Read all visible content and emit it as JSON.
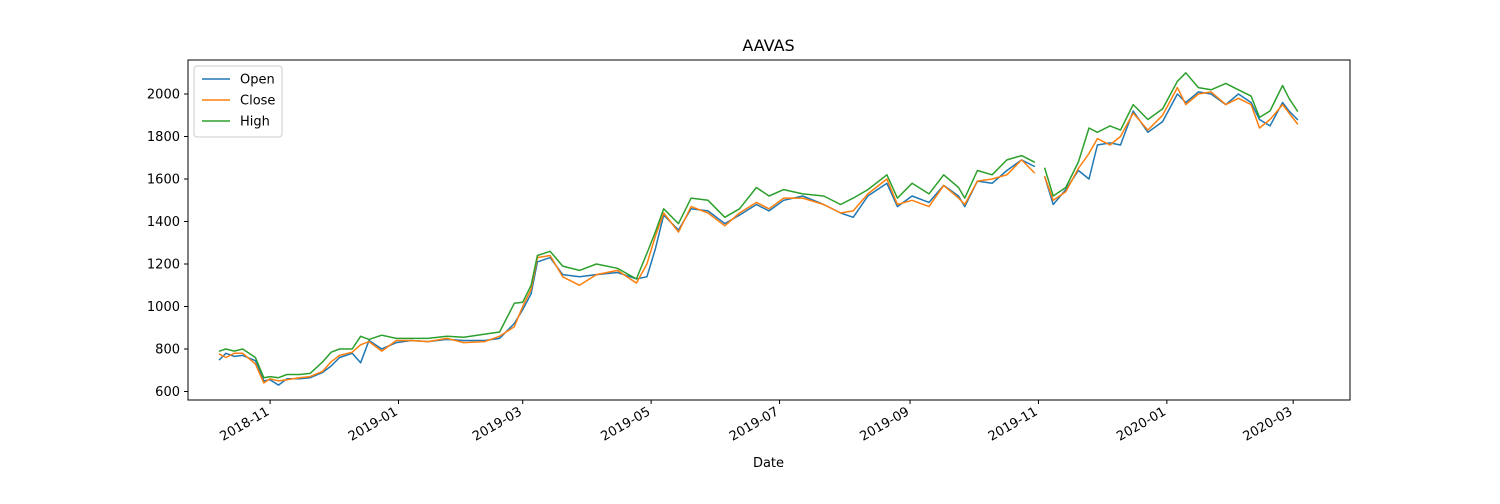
{
  "chart_data": {
    "type": "line",
    "title": "AAVAS",
    "xlabel": "Date",
    "ylabel": "",
    "ylim": [
      560,
      2160
    ],
    "yticks": [
      600,
      800,
      1000,
      1200,
      1400,
      1600,
      1800,
      2000
    ],
    "xlim": [
      "2018-09-23",
      "2020-03-28"
    ],
    "xticks": [
      "2018-11",
      "2019-01",
      "2019-03",
      "2019-05",
      "2019-07",
      "2019-09",
      "2019-11",
      "2020-01",
      "2020-03"
    ],
    "legend": {
      "placement": "upper-left",
      "entries": [
        "Open",
        "Close",
        "High"
      ]
    },
    "grid": false,
    "colors": {
      "Open": "#1f77b4",
      "Close": "#ff7f0e",
      "High": "#2ca02c"
    },
    "series": [
      {
        "name": "Open",
        "points": [
          [
            "2018-10-08",
            750
          ],
          [
            "2018-10-11",
            780
          ],
          [
            "2018-10-15",
            765
          ],
          [
            "2018-10-19",
            770
          ],
          [
            "2018-10-25",
            745
          ],
          [
            "2018-10-29",
            650
          ],
          [
            "2018-11-01",
            655
          ],
          [
            "2018-11-05",
            630
          ],
          [
            "2018-11-09",
            660
          ],
          [
            "2018-11-15",
            660
          ],
          [
            "2018-11-20",
            665
          ],
          [
            "2018-11-26",
            690
          ],
          [
            "2018-11-30",
            720
          ],
          [
            "2018-12-04",
            760
          ],
          [
            "2018-12-10",
            780
          ],
          [
            "2018-12-14",
            735
          ],
          [
            "2018-12-18",
            840
          ],
          [
            "2018-12-24",
            800
          ],
          [
            "2018-12-31",
            830
          ],
          [
            "2019-01-07",
            840
          ],
          [
            "2019-01-15",
            835
          ],
          [
            "2019-01-24",
            845
          ],
          [
            "2019-02-01",
            840
          ],
          [
            "2019-02-11",
            840
          ],
          [
            "2019-02-18",
            850
          ],
          [
            "2019-02-25",
            920
          ],
          [
            "2019-03-01",
            985
          ],
          [
            "2019-03-05",
            1060
          ],
          [
            "2019-03-08",
            1210
          ],
          [
            "2019-03-14",
            1230
          ],
          [
            "2019-03-20",
            1150
          ],
          [
            "2019-03-28",
            1140
          ],
          [
            "2019-04-05",
            1150
          ],
          [
            "2019-04-15",
            1160
          ],
          [
            "2019-04-24",
            1130
          ],
          [
            "2019-04-29",
            1140
          ],
          [
            "2019-05-03",
            1270
          ],
          [
            "2019-05-07",
            1430
          ],
          [
            "2019-05-14",
            1360
          ],
          [
            "2019-05-20",
            1460
          ],
          [
            "2019-05-28",
            1450
          ],
          [
            "2019-06-05",
            1390
          ],
          [
            "2019-06-12",
            1430
          ],
          [
            "2019-06-20",
            1480
          ],
          [
            "2019-06-26",
            1450
          ],
          [
            "2019-07-03",
            1500
          ],
          [
            "2019-07-12",
            1520
          ],
          [
            "2019-07-22",
            1480
          ],
          [
            "2019-07-30",
            1440
          ],
          [
            "2019-08-05",
            1420
          ],
          [
            "2019-08-12",
            1520
          ],
          [
            "2019-08-21",
            1580
          ],
          [
            "2019-08-26",
            1470
          ],
          [
            "2019-09-02",
            1520
          ],
          [
            "2019-09-10",
            1490
          ],
          [
            "2019-09-17",
            1570
          ],
          [
            "2019-09-24",
            1520
          ],
          [
            "2019-09-27",
            1470
          ],
          [
            "2019-10-03",
            1590
          ],
          [
            "2019-10-10",
            1580
          ],
          [
            "2019-10-17",
            1640
          ],
          [
            "2019-10-24",
            1690
          ],
          [
            "2019-10-30",
            1660
          ]
        ]
      },
      {
        "name": "Open",
        "points": [
          [
            "2019-11-04",
            1610
          ],
          [
            "2019-11-08",
            1480
          ],
          [
            "2019-11-14",
            1550
          ],
          [
            "2019-11-20",
            1640
          ],
          [
            "2019-11-25",
            1600
          ],
          [
            "2019-11-29",
            1760
          ],
          [
            "2019-12-05",
            1770
          ],
          [
            "2019-12-10",
            1760
          ],
          [
            "2019-12-16",
            1920
          ],
          [
            "2019-12-23",
            1820
          ],
          [
            "2019-12-30",
            1870
          ],
          [
            "2020-01-06",
            2000
          ],
          [
            "2020-01-10",
            1960
          ],
          [
            "2020-01-16",
            2010
          ],
          [
            "2020-01-22",
            2000
          ],
          [
            "2020-01-29",
            1950
          ],
          [
            "2020-02-04",
            2000
          ],
          [
            "2020-02-10",
            1960
          ],
          [
            "2020-02-14",
            1880
          ],
          [
            "2020-02-19",
            1850
          ],
          [
            "2020-02-25",
            1960
          ],
          [
            "2020-02-28",
            1920
          ],
          [
            "2020-03-03",
            1880
          ]
        ]
      },
      {
        "name": "Close",
        "points": [
          [
            "2018-10-08",
            775
          ],
          [
            "2018-10-11",
            760
          ],
          [
            "2018-10-15",
            780
          ],
          [
            "2018-10-19",
            780
          ],
          [
            "2018-10-25",
            730
          ],
          [
            "2018-10-29",
            640
          ],
          [
            "2018-11-01",
            660
          ],
          [
            "2018-11-05",
            650
          ],
          [
            "2018-11-09",
            655
          ],
          [
            "2018-11-15",
            665
          ],
          [
            "2018-11-20",
            670
          ],
          [
            "2018-11-26",
            695
          ],
          [
            "2018-11-30",
            740
          ],
          [
            "2018-12-04",
            770
          ],
          [
            "2018-12-10",
            785
          ],
          [
            "2018-12-14",
            820
          ],
          [
            "2018-12-18",
            835
          ],
          [
            "2018-12-24",
            790
          ],
          [
            "2018-12-31",
            840
          ],
          [
            "2019-01-07",
            840
          ],
          [
            "2019-01-15",
            835
          ],
          [
            "2019-01-24",
            850
          ],
          [
            "2019-02-01",
            830
          ],
          [
            "2019-02-11",
            835
          ],
          [
            "2019-02-18",
            860
          ],
          [
            "2019-02-25",
            905
          ],
          [
            "2019-03-01",
            1000
          ],
          [
            "2019-03-05",
            1080
          ],
          [
            "2019-03-08",
            1230
          ],
          [
            "2019-03-14",
            1240
          ],
          [
            "2019-03-20",
            1140
          ],
          [
            "2019-03-28",
            1100
          ],
          [
            "2019-04-05",
            1150
          ],
          [
            "2019-04-15",
            1170
          ],
          [
            "2019-04-24",
            1110
          ],
          [
            "2019-04-29",
            1200
          ],
          [
            "2019-05-03",
            1330
          ],
          [
            "2019-05-07",
            1440
          ],
          [
            "2019-05-14",
            1350
          ],
          [
            "2019-05-20",
            1470
          ],
          [
            "2019-05-28",
            1440
          ],
          [
            "2019-06-05",
            1380
          ],
          [
            "2019-06-12",
            1440
          ],
          [
            "2019-06-20",
            1490
          ],
          [
            "2019-06-26",
            1460
          ],
          [
            "2019-07-03",
            1510
          ],
          [
            "2019-07-12",
            1510
          ],
          [
            "2019-07-22",
            1480
          ],
          [
            "2019-07-30",
            1440
          ],
          [
            "2019-08-05",
            1450
          ],
          [
            "2019-08-12",
            1530
          ],
          [
            "2019-08-21",
            1600
          ],
          [
            "2019-08-26",
            1480
          ],
          [
            "2019-09-02",
            1500
          ],
          [
            "2019-09-10",
            1470
          ],
          [
            "2019-09-17",
            1570
          ],
          [
            "2019-09-24",
            1510
          ],
          [
            "2019-09-27",
            1480
          ],
          [
            "2019-10-03",
            1590
          ],
          [
            "2019-10-10",
            1600
          ],
          [
            "2019-10-17",
            1620
          ],
          [
            "2019-10-24",
            1690
          ],
          [
            "2019-10-30",
            1630
          ]
        ]
      },
      {
        "name": "Close",
        "points": [
          [
            "2019-11-04",
            1610
          ],
          [
            "2019-11-08",
            1500
          ],
          [
            "2019-11-14",
            1540
          ],
          [
            "2019-11-20",
            1650
          ],
          [
            "2019-11-25",
            1720
          ],
          [
            "2019-11-29",
            1790
          ],
          [
            "2019-12-05",
            1760
          ],
          [
            "2019-12-10",
            1800
          ],
          [
            "2019-12-16",
            1910
          ],
          [
            "2019-12-23",
            1830
          ],
          [
            "2019-12-30",
            1900
          ],
          [
            "2020-01-06",
            2030
          ],
          [
            "2020-01-10",
            1950
          ],
          [
            "2020-01-16",
            2000
          ],
          [
            "2020-01-22",
            2010
          ],
          [
            "2020-01-29",
            1950
          ],
          [
            "2020-02-04",
            1980
          ],
          [
            "2020-02-10",
            1950
          ],
          [
            "2020-02-14",
            1840
          ],
          [
            "2020-02-19",
            1880
          ],
          [
            "2020-02-25",
            1950
          ],
          [
            "2020-02-28",
            1910
          ],
          [
            "2020-03-03",
            1860
          ]
        ]
      },
      {
        "name": "High",
        "points": [
          [
            "2018-10-08",
            790
          ],
          [
            "2018-10-11",
            800
          ],
          [
            "2018-10-15",
            790
          ],
          [
            "2018-10-19",
            800
          ],
          [
            "2018-10-25",
            760
          ],
          [
            "2018-10-29",
            665
          ],
          [
            "2018-11-01",
            670
          ],
          [
            "2018-11-05",
            665
          ],
          [
            "2018-11-09",
            680
          ],
          [
            "2018-11-15",
            680
          ],
          [
            "2018-11-20",
            685
          ],
          [
            "2018-11-26",
            740
          ],
          [
            "2018-11-30",
            785
          ],
          [
            "2018-12-04",
            800
          ],
          [
            "2018-12-10",
            800
          ],
          [
            "2018-12-14",
            860
          ],
          [
            "2018-12-18",
            845
          ],
          [
            "2018-12-24",
            865
          ],
          [
            "2018-12-31",
            850
          ],
          [
            "2019-01-07",
            850
          ],
          [
            "2019-01-15",
            850
          ],
          [
            "2019-01-24",
            860
          ],
          [
            "2019-02-01",
            855
          ],
          [
            "2019-02-11",
            870
          ],
          [
            "2019-02-18",
            880
          ],
          [
            "2019-02-25",
            1015
          ],
          [
            "2019-03-01",
            1020
          ],
          [
            "2019-03-05",
            1100
          ],
          [
            "2019-03-08",
            1240
          ],
          [
            "2019-03-14",
            1260
          ],
          [
            "2019-03-20",
            1190
          ],
          [
            "2019-03-28",
            1170
          ],
          [
            "2019-04-05",
            1200
          ],
          [
            "2019-04-15",
            1180
          ],
          [
            "2019-04-24",
            1130
          ],
          [
            "2019-04-29",
            1250
          ],
          [
            "2019-05-03",
            1350
          ],
          [
            "2019-05-07",
            1460
          ],
          [
            "2019-05-14",
            1390
          ],
          [
            "2019-05-20",
            1510
          ],
          [
            "2019-05-28",
            1500
          ],
          [
            "2019-06-05",
            1420
          ],
          [
            "2019-06-12",
            1460
          ],
          [
            "2019-06-20",
            1560
          ],
          [
            "2019-06-26",
            1520
          ],
          [
            "2019-07-03",
            1550
          ],
          [
            "2019-07-12",
            1530
          ],
          [
            "2019-07-22",
            1520
          ],
          [
            "2019-07-30",
            1480
          ],
          [
            "2019-08-05",
            1510
          ],
          [
            "2019-08-12",
            1550
          ],
          [
            "2019-08-21",
            1620
          ],
          [
            "2019-08-26",
            1510
          ],
          [
            "2019-09-02",
            1580
          ],
          [
            "2019-09-10",
            1530
          ],
          [
            "2019-09-17",
            1620
          ],
          [
            "2019-09-24",
            1560
          ],
          [
            "2019-09-27",
            1510
          ],
          [
            "2019-10-03",
            1640
          ],
          [
            "2019-10-10",
            1620
          ],
          [
            "2019-10-17",
            1690
          ],
          [
            "2019-10-24",
            1710
          ],
          [
            "2019-10-30",
            1680
          ]
        ]
      },
      {
        "name": "High",
        "points": [
          [
            "2019-11-04",
            1650
          ],
          [
            "2019-11-08",
            1520
          ],
          [
            "2019-11-14",
            1560
          ],
          [
            "2019-11-20",
            1680
          ],
          [
            "2019-11-25",
            1840
          ],
          [
            "2019-11-29",
            1820
          ],
          [
            "2019-12-05",
            1850
          ],
          [
            "2019-12-10",
            1830
          ],
          [
            "2019-12-16",
            1950
          ],
          [
            "2019-12-23",
            1880
          ],
          [
            "2019-12-30",
            1930
          ],
          [
            "2020-01-06",
            2060
          ],
          [
            "2020-01-10",
            2100
          ],
          [
            "2020-01-16",
            2030
          ],
          [
            "2020-01-22",
            2020
          ],
          [
            "2020-01-29",
            2050
          ],
          [
            "2020-02-04",
            2020
          ],
          [
            "2020-02-10",
            1990
          ],
          [
            "2020-02-14",
            1890
          ],
          [
            "2020-02-19",
            1920
          ],
          [
            "2020-02-25",
            2040
          ],
          [
            "2020-02-28",
            1980
          ],
          [
            "2020-03-03",
            1920
          ]
        ]
      }
    ]
  }
}
